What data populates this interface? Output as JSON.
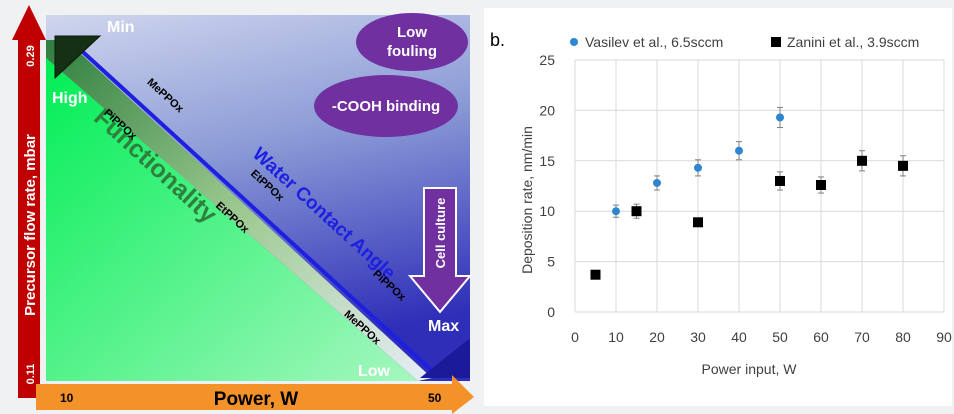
{
  "panel_a": {
    "labels": {
      "min": "Min",
      "max": "Max",
      "high": "High",
      "low": "Low",
      "low_fouling_line1": "Low",
      "low_fouling_line2": "fouling",
      "cooh_binding": "-COOH binding",
      "cell_culture": "Cell culture",
      "water_contact_angle": "Water Contact Angle",
      "functionality": "Functionality",
      "y_axis_label": "Precursor flow rate, mbar",
      "y_tick_top": "0.29",
      "y_tick_bottom": "0.11",
      "x_axis_label": "Power, W",
      "x_tick_left": "10",
      "x_tick_right": "50",
      "diag_upper_1": "MePPOx",
      "diag_upper_2": "EtPPOx",
      "diag_upper_3": "PiPPOx",
      "diag_lower_1": "PiPPOx",
      "diag_lower_2": "EtPPOx",
      "diag_lower_3": "MePPOx"
    },
    "colors": {
      "red_arrow": "#c00000",
      "orange_arrow": "#f4922a",
      "purple": "#7030a0",
      "blue_line": "#1f1fe0",
      "green": "#00ee55"
    }
  },
  "panel_b_label": "b.",
  "chart_data": {
    "type": "scatter",
    "xlabel": "Power input, W",
    "ylabel": "Deposition rate, nm/min",
    "xlim": [
      0,
      90
    ],
    "ylim": [
      0,
      25
    ],
    "xticks": [
      0,
      10,
      20,
      30,
      40,
      50,
      60,
      70,
      80,
      90
    ],
    "yticks": [
      0,
      5,
      10,
      15,
      20,
      25
    ],
    "grid": true,
    "legend_position": "top",
    "series": [
      {
        "name": "Vasilev et al., 6.5sccm",
        "marker": "circle",
        "color": "#2e86d1",
        "x": [
          10,
          20,
          30,
          40,
          50
        ],
        "y": [
          10.0,
          12.8,
          14.3,
          16.0,
          19.3
        ],
        "err": [
          0.6,
          0.7,
          0.8,
          0.9,
          1.0
        ]
      },
      {
        "name": "Zanini et al., 3.9sccm",
        "marker": "square",
        "color": "#000000",
        "x": [
          5,
          15,
          30,
          50,
          60,
          70,
          80
        ],
        "y": [
          3.7,
          10.0,
          8.9,
          13.0,
          12.6,
          15.0,
          14.5
        ],
        "err": [
          0.0,
          0.7,
          0.0,
          0.9,
          0.8,
          1.0,
          1.0
        ]
      }
    ]
  }
}
